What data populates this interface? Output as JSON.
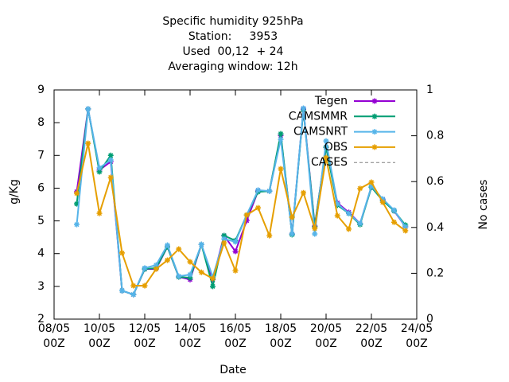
{
  "chart_data": {
    "type": "line",
    "title": [
      "Specific humidity 925hPa",
      "Station:     3953",
      "Used  00,12  + 24",
      "Averaging window: 12h"
    ],
    "xlabel": "Date",
    "ylabel": "g/Kg",
    "y2label": "No cases",
    "x": [
      9,
      9.5,
      10,
      10.5,
      11,
      11.5,
      12,
      12.5,
      13,
      13.5,
      14,
      14.5,
      15,
      15.5,
      16,
      16.5,
      17,
      17.5,
      18,
      18.5,
      19,
      19.5,
      20,
      20.5,
      21,
      21.5,
      22,
      22.5,
      23,
      23.5
    ],
    "xlim": [
      8,
      24
    ],
    "xticks": [
      {
        "value": 8,
        "label": "08/05\n00Z"
      },
      {
        "value": 10,
        "label": "10/05\n00Z"
      },
      {
        "value": 12,
        "label": "12/05\n00Z"
      },
      {
        "value": 14,
        "label": "14/05\n00Z"
      },
      {
        "value": 16,
        "label": "16/05\n00Z"
      },
      {
        "value": 18,
        "label": "18/05\n00Z"
      },
      {
        "value": 20,
        "label": "20/05\n00Z"
      },
      {
        "value": 22,
        "label": "22/05\n00Z"
      },
      {
        "value": 24,
        "label": "24/05\n00Z"
      }
    ],
    "ylim": [
      2,
      9
    ],
    "yticks": [
      2,
      3,
      4,
      5,
      6,
      7,
      8,
      9
    ],
    "y2lim": [
      0,
      1
    ],
    "y2ticks": [
      0,
      0.2,
      0.4,
      0.6,
      0.8,
      1
    ],
    "legend": "upper right",
    "series": [
      {
        "name": "Tegen",
        "color": "#9400d3",
        "values": [
          5.89,
          8.42,
          6.55,
          6.81,
          2.87,
          2.75,
          3.53,
          3.53,
          4.21,
          3.29,
          3.21,
          4.28,
          3.21,
          4.55,
          4.07,
          5.01,
          5.91,
          5.91,
          7.61,
          4.6,
          8.42,
          4.84,
          7.25,
          5.55,
          5.26,
          4.92,
          6.03,
          5.65,
          5.31,
          4.82
        ]
      },
      {
        "name": "CAMSMMR",
        "color": "#009e73",
        "values": [
          5.52,
          8.42,
          6.5,
          7.0,
          2.87,
          2.75,
          3.53,
          3.56,
          4.21,
          3.29,
          3.26,
          4.28,
          3.0,
          4.55,
          4.4,
          5.18,
          5.89,
          5.91,
          7.66,
          4.58,
          8.39,
          4.82,
          7.25,
          5.48,
          5.23,
          4.89,
          6.03,
          5.62,
          5.31,
          4.87
        ]
      },
      {
        "name": "CAMSNRT",
        "color": "#56b4e9",
        "values": [
          4.89,
          8.42,
          6.62,
          6.86,
          2.87,
          2.75,
          3.56,
          3.65,
          4.26,
          3.31,
          3.36,
          4.28,
          3.29,
          4.45,
          4.36,
          5.18,
          5.94,
          5.91,
          7.49,
          4.6,
          8.44,
          4.6,
          7.44,
          5.52,
          5.23,
          4.92,
          6.06,
          5.67,
          5.33,
          4.82
        ]
      },
      {
        "name": "OBS",
        "color": "#e69f00",
        "values": [
          5.84,
          7.37,
          5.23,
          6.33,
          4.02,
          3.02,
          3.02,
          3.53,
          3.8,
          4.14,
          3.75,
          3.43,
          3.24,
          4.33,
          3.48,
          5.18,
          5.4,
          4.55,
          6.59,
          5.11,
          5.86,
          4.77,
          6.93,
          5.16,
          4.75,
          5.99,
          6.18,
          5.57,
          4.96,
          4.7
        ]
      },
      {
        "name": "CASES",
        "color": "#808080",
        "dashed": true,
        "axis": "y2",
        "values": [
          null,
          null,
          null,
          null,
          null,
          null,
          null,
          null,
          null,
          null,
          null,
          null,
          null,
          null,
          null,
          null,
          null,
          null,
          null,
          null,
          null,
          null,
          null,
          null,
          null,
          null,
          null,
          null,
          null,
          null
        ]
      }
    ]
  }
}
